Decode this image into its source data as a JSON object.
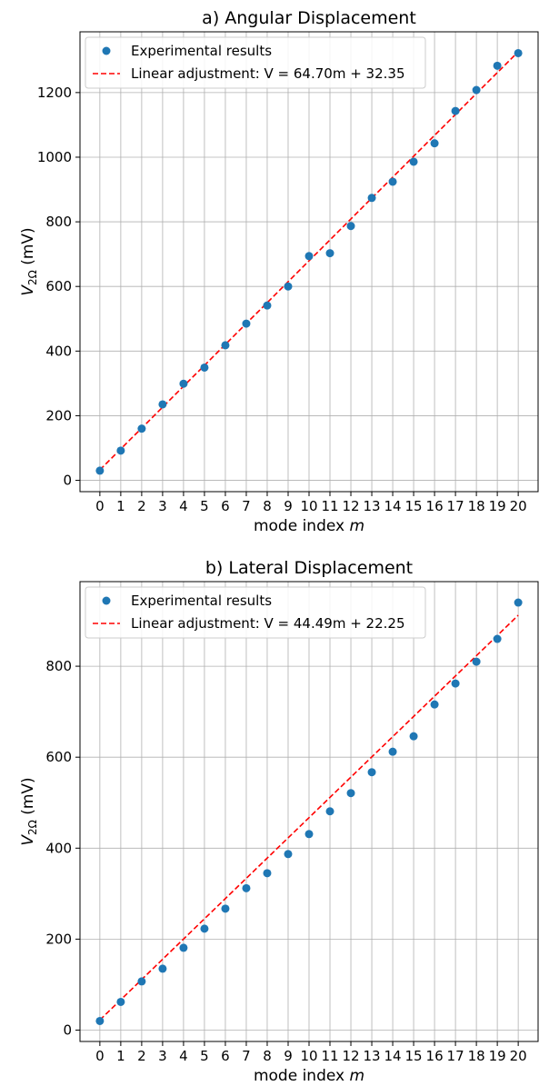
{
  "chart_data": [
    {
      "type": "scatter",
      "title": "a) Angular Displacement",
      "xlabel_text": "mode index ",
      "xlabel_var": "m",
      "ylabel_var": "V",
      "ylabel_sub": "2Ω",
      "ylabel_unit": " (mV)",
      "x": [
        0,
        1,
        2,
        3,
        4,
        5,
        6,
        7,
        8,
        9,
        10,
        11,
        12,
        13,
        14,
        15,
        16,
        17,
        18,
        19,
        20
      ],
      "series": [
        {
          "name": "Experimental results",
          "kind": "scatter",
          "color": "#1f77b4",
          "values": [
            30,
            92,
            160,
            235,
            299,
            349,
            418,
            485,
            541,
            600,
            694,
            703,
            787,
            874,
            924,
            986,
            1043,
            1143,
            1208,
            1283,
            1322
          ]
        },
        {
          "name": "Linear adjustment: V = 64.70m + 32.35",
          "kind": "fit",
          "color": "#ff0000",
          "slope": 64.7,
          "intercept": 32.35
        }
      ],
      "xticks": [
        0,
        1,
        2,
        3,
        4,
        5,
        6,
        7,
        8,
        9,
        10,
        11,
        12,
        13,
        14,
        15,
        16,
        17,
        18,
        19,
        20
      ],
      "yticks": [
        0,
        200,
        400,
        600,
        800,
        1000,
        1200
      ],
      "xlim": [
        -0.95,
        20.95
      ],
      "ylim": [
        -35,
        1388
      ],
      "grid": "x-and-y",
      "legend_position": "upper-left"
    },
    {
      "type": "scatter",
      "title": "b) Lateral Displacement",
      "xlabel_text": "mode index ",
      "xlabel_var": "m",
      "ylabel_var": "V",
      "ylabel_sub": "2Ω",
      "ylabel_unit": " (mV)",
      "x": [
        0,
        1,
        2,
        3,
        4,
        5,
        6,
        7,
        8,
        9,
        10,
        11,
        12,
        13,
        14,
        15,
        16,
        17,
        18,
        19,
        20
      ],
      "series": [
        {
          "name": "Experimental results",
          "kind": "scatter",
          "color": "#1f77b4",
          "values": [
            20,
            62,
            107,
            135,
            181,
            223,
            267,
            312,
            345,
            387,
            431,
            481,
            521,
            567,
            612,
            646,
            716,
            762,
            810,
            860,
            940
          ]
        },
        {
          "name": "Linear adjustment: V = 44.49m + 22.25",
          "kind": "fit",
          "color": "#ff0000",
          "slope": 44.49,
          "intercept": 22.25
        }
      ],
      "xticks": [
        0,
        1,
        2,
        3,
        4,
        5,
        6,
        7,
        8,
        9,
        10,
        11,
        12,
        13,
        14,
        15,
        16,
        17,
        18,
        19,
        20
      ],
      "yticks": [
        0,
        200,
        400,
        600,
        800
      ],
      "xlim": [
        -0.95,
        20.95
      ],
      "ylim": [
        -25,
        986
      ],
      "grid": "x-and-y",
      "legend_position": "upper-left"
    }
  ]
}
